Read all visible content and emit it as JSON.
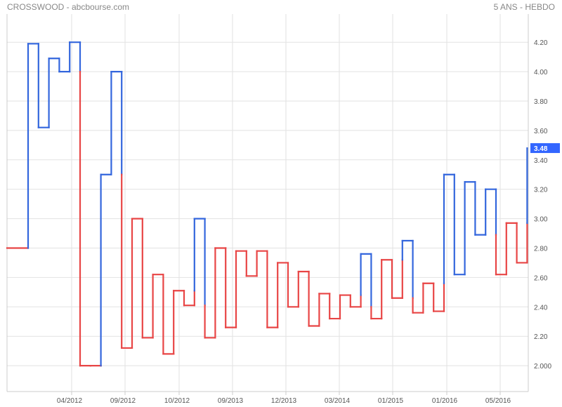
{
  "header": {
    "title": "CROSSWOOD - abcbourse.com",
    "period": "5 ANS - HEBDO"
  },
  "chart_data": {
    "type": "line",
    "subtype": "kagi",
    "title": "",
    "xlabel": "",
    "ylabel": "",
    "ylim": [
      1.8,
      4.4
    ],
    "grid": true,
    "colors": {
      "up": "#3366dd",
      "down": "#e84545",
      "grid": "#e2e2e2",
      "axis": "#cccccc",
      "last_badge": "#3366ff"
    },
    "last_value": "3.48",
    "x_ticks": [
      "04/2012",
      "09/2012",
      "10/2012",
      "09/2013",
      "12/2013",
      "03/2014",
      "01/2015",
      "01/2016",
      "05/2016"
    ],
    "y_ticks": [
      "2.000",
      "2.20",
      "2.40",
      "2.60",
      "2.80",
      "3.00",
      "3.20",
      "3.40",
      "3.60",
      "3.80",
      "4.00",
      "4.20"
    ],
    "y_tick_values": [
      2.0,
      2.2,
      2.4,
      2.6,
      2.8,
      3.0,
      3.2,
      3.4,
      3.6,
      3.8,
      4.0,
      4.2
    ],
    "start_value": 2.8,
    "reversal_values": [
      4.19,
      3.62,
      4.09,
      4.0,
      4.2,
      2.0,
      2.0,
      3.3,
      4.0,
      2.12,
      3.0,
      2.19,
      2.62,
      2.08,
      2.51,
      2.41,
      3.0,
      2.19,
      2.8,
      2.26,
      2.78,
      2.61,
      2.78,
      2.26,
      2.7,
      2.4,
      2.64,
      2.27,
      2.49,
      2.32,
      2.48,
      2.4,
      2.76,
      2.32,
      2.72,
      2.46,
      2.85,
      2.36,
      2.56,
      2.37,
      3.3,
      2.62,
      3.25,
      2.89,
      3.2,
      2.62,
      2.97,
      2.7,
      3.48
    ]
  }
}
